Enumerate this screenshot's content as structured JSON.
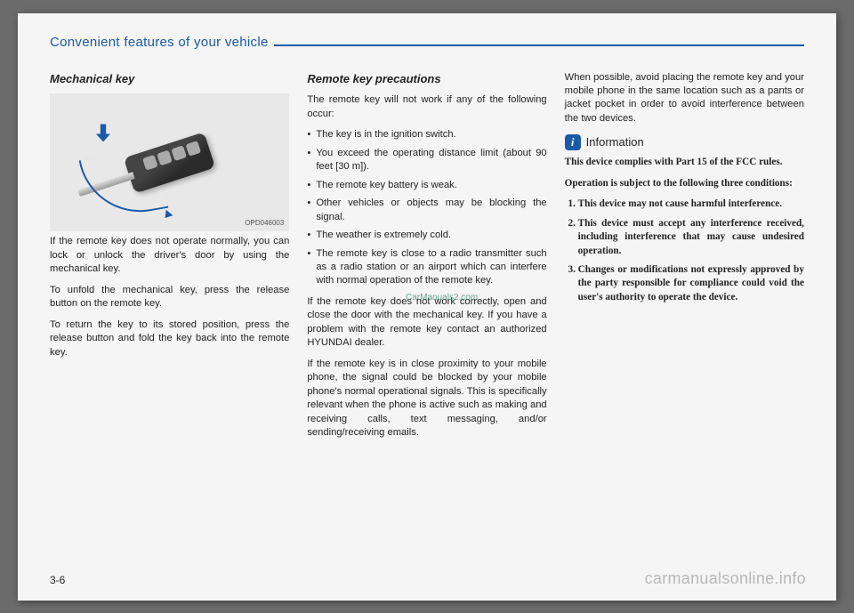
{
  "header": {
    "section_title": "Convenient features of your vehicle",
    "color": "#1a5aa8"
  },
  "page_number": "3-6",
  "watermark_top": "CarManuals2.com",
  "watermark_bottom": "carmanualsonline.info",
  "col1": {
    "heading": "Mechanical key",
    "image_code": "OPD046003",
    "p1": "If the remote key does not operate normally, you can lock or unlock the driver's door by using the mechanical key.",
    "p2": "To unfold the mechanical key, press the release button on the remote key.",
    "p3": "To return the key to its stored position, press the release button and fold the key back into the remote key."
  },
  "col2": {
    "heading": "Remote key precautions",
    "intro": "The remote key will not work if any of the following occur:",
    "bullets": [
      "The key is in the ignition switch.",
      "You exceed the operating distance limit (about 90 feet [30 m]).",
      "The remote key battery is weak.",
      "Other vehicles or objects may be blocking the signal.",
      "The weather is extremely cold.",
      "The remote key is close to a radio transmitter such as a radio station or an airport which can interfere with normal operation of the remote key."
    ],
    "p1": "If the remote key does not work correctly, open and close the door with the mechanical key. If you have a problem with the remote key contact an authorized HYUNDAI dealer.",
    "p2": "If the remote key is in close proximity to your mobile phone, the signal could be blocked by your mobile phone's normal operational signals. This is specifically relevant when the phone is active such as making and receiving calls, text messaging, and/or sending/receiving emails."
  },
  "col3": {
    "p_top": "When possible, avoid placing the remote key and your mobile phone in the same location such as a pants or jacket pocket in order to avoid interference between the two devices.",
    "info_icon": "i",
    "info_label": "Information",
    "info_p1": "This device complies with Part 15 of the FCC rules.",
    "info_p2": "Operation is subject to the following three conditions:",
    "info_list": [
      "This device may not cause harmful interference.",
      "This device must accept any interference received, including interference that may cause undesired operation.",
      "Changes or modifications not expressly approved by the party responsible for compliance could void the user's authority to operate the device."
    ]
  }
}
